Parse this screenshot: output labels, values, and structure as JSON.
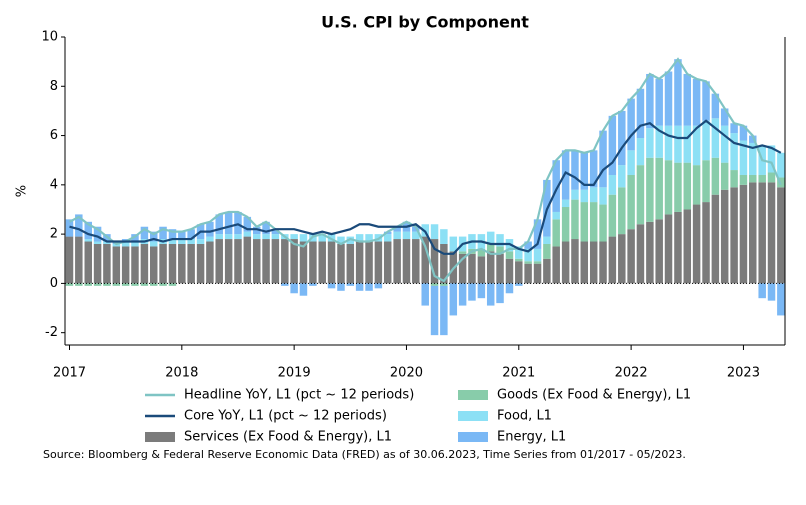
{
  "chart_data": {
    "type": "bar",
    "title": "U.S. CPI by Component",
    "y_label": "%",
    "source": "Source: Bloomberg & Federal Reserve Economic Data (FRED) as of 30.06.2023, Time Series from 01/2017 - 05/2023.",
    "xlim": [
      2016.96,
      2023.37
    ],
    "xticks": [
      2017,
      2018,
      2019,
      2020,
      2021,
      2022,
      2023
    ],
    "ylim": [
      -2.5,
      10
    ],
    "yticks": [
      -2,
      0,
      2,
      4,
      6,
      8,
      10
    ],
    "x": [
      2017,
      2017.083,
      2017.167,
      2017.25,
      2017.333,
      2017.417,
      2017.5,
      2017.583,
      2017.667,
      2017.75,
      2017.833,
      2017.917,
      2018,
      2018.083,
      2018.167,
      2018.25,
      2018.333,
      2018.417,
      2018.5,
      2018.583,
      2018.667,
      2018.75,
      2018.833,
      2018.917,
      2019,
      2019.083,
      2019.167,
      2019.25,
      2019.333,
      2019.417,
      2019.5,
      2019.583,
      2019.667,
      2019.75,
      2019.833,
      2019.917,
      2020,
      2020.083,
      2020.167,
      2020.25,
      2020.333,
      2020.417,
      2020.5,
      2020.583,
      2020.667,
      2020.75,
      2020.833,
      2020.917,
      2021,
      2021.083,
      2021.167,
      2021.25,
      2021.333,
      2021.417,
      2021.5,
      2021.583,
      2021.667,
      2021.75,
      2021.833,
      2021.917,
      2022,
      2022.083,
      2022.167,
      2022.25,
      2022.333,
      2022.417,
      2022.5,
      2022.583,
      2022.667,
      2022.75,
      2022.833,
      2022.917,
      2023,
      2023.083,
      2023.167,
      2023.25,
      2023.333
    ],
    "series": [
      {
        "name": "Headline YoY, L1 (pct ~ 12 periods)",
        "type": "line",
        "color": "#7fc4c4",
        "values": [
          2.5,
          2.7,
          2.4,
          2.2,
          1.9,
          1.6,
          1.7,
          1.9,
          2.2,
          2.0,
          2.2,
          2.1,
          2.1,
          2.2,
          2.4,
          2.5,
          2.8,
          2.9,
          2.9,
          2.7,
          2.3,
          2.5,
          2.2,
          1.9,
          1.6,
          1.5,
          1.9,
          2.0,
          1.8,
          1.6,
          1.8,
          1.7,
          1.7,
          1.8,
          2.1,
          2.3,
          2.5,
          2.3,
          1.5,
          0.3,
          0.1,
          0.6,
          1.0,
          1.3,
          1.4,
          1.2,
          1.2,
          1.4,
          1.4,
          1.7,
          2.6,
          4.2,
          5.0,
          5.4,
          5.4,
          5.3,
          5.4,
          6.2,
          6.8,
          7.0,
          7.5,
          7.9,
          8.5,
          8.3,
          8.6,
          9.1,
          8.5,
          8.3,
          8.2,
          7.7,
          7.1,
          6.5,
          6.4,
          6.0,
          5.0,
          4.9,
          4.0
        ]
      },
      {
        "name": "Core YoY, L1 (pct ~ 12 periods)",
        "type": "line",
        "color": "#1a4a7a",
        "values": [
          2.3,
          2.2,
          2.0,
          1.9,
          1.7,
          1.7,
          1.7,
          1.7,
          1.7,
          1.8,
          1.7,
          1.8,
          1.8,
          1.8,
          2.1,
          2.1,
          2.2,
          2.3,
          2.4,
          2.2,
          2.2,
          2.1,
          2.2,
          2.2,
          2.2,
          2.1,
          2.0,
          2.1,
          2.0,
          2.1,
          2.2,
          2.4,
          2.4,
          2.3,
          2.3,
          2.3,
          2.3,
          2.4,
          2.1,
          1.4,
          1.2,
          1.2,
          1.6,
          1.7,
          1.7,
          1.6,
          1.6,
          1.6,
          1.4,
          1.3,
          1.6,
          3.0,
          3.8,
          4.5,
          4.3,
          4.0,
          4.0,
          4.6,
          4.9,
          5.5,
          6.0,
          6.4,
          6.5,
          6.2,
          6.0,
          5.9,
          5.9,
          6.3,
          6.6,
          6.3,
          6.0,
          5.7,
          5.6,
          5.5,
          5.6,
          5.5,
          5.3
        ]
      },
      {
        "name": "Services (Ex Food & Energy), L1",
        "type": "bar",
        "color": "#7b7b7b",
        "values": [
          1.9,
          1.9,
          1.7,
          1.6,
          1.6,
          1.5,
          1.5,
          1.5,
          1.6,
          1.5,
          1.6,
          1.6,
          1.6,
          1.6,
          1.6,
          1.7,
          1.8,
          1.8,
          1.8,
          1.9,
          1.8,
          1.8,
          1.8,
          1.8,
          1.8,
          1.7,
          1.7,
          1.7,
          1.7,
          1.6,
          1.6,
          1.7,
          1.7,
          1.7,
          1.7,
          1.8,
          1.8,
          1.8,
          1.9,
          1.8,
          1.6,
          1.3,
          1.2,
          1.2,
          1.1,
          1.3,
          1.2,
          1.0,
          0.9,
          0.8,
          0.8,
          1.0,
          1.5,
          1.7,
          1.8,
          1.7,
          1.7,
          1.7,
          1.9,
          2.0,
          2.2,
          2.4,
          2.5,
          2.6,
          2.8,
          2.9,
          3.0,
          3.2,
          3.3,
          3.6,
          3.8,
          3.9,
          4.0,
          4.1,
          4.1,
          4.1,
          3.9
        ]
      },
      {
        "name": "Goods (Ex Food & Energy), L1",
        "type": "bar",
        "color": "#88ccaa",
        "values": [
          -0.1,
          -0.1,
          -0.1,
          -0.1,
          -0.1,
          -0.1,
          -0.1,
          -0.1,
          -0.1,
          -0.1,
          -0.1,
          -0.1,
          0,
          0,
          0,
          0,
          0,
          0,
          0,
          0,
          0,
          0,
          0,
          0,
          0,
          0,
          0,
          0,
          0,
          0,
          0,
          0,
          0,
          0,
          0,
          0,
          0,
          0,
          0,
          -0.1,
          -0.1,
          0,
          0.1,
          0.2,
          0.3,
          0.3,
          0.3,
          0.3,
          0.1,
          0.1,
          0.1,
          0.6,
          1.1,
          1.4,
          1.6,
          1.6,
          1.6,
          1.5,
          1.7,
          1.9,
          2.2,
          2.4,
          2.6,
          2.5,
          2.2,
          2.0,
          1.9,
          1.6,
          1.7,
          1.5,
          1.1,
          0.7,
          0.4,
          0.3,
          0.3,
          0.4,
          0.4
        ]
      },
      {
        "name": "Food, L1",
        "type": "bar",
        "color": "#8ce0f5",
        "values": [
          0,
          0,
          0.1,
          0.1,
          0.1,
          0.1,
          0.2,
          0.2,
          0.2,
          0.2,
          0.2,
          0.2,
          0.2,
          0.2,
          0.2,
          0.2,
          0.2,
          0.2,
          0.2,
          0.2,
          0.2,
          0.2,
          0.2,
          0.2,
          0.2,
          0.3,
          0.3,
          0.3,
          0.3,
          0.3,
          0.3,
          0.3,
          0.3,
          0.3,
          0.3,
          0.3,
          0.3,
          0.3,
          0.5,
          0.6,
          0.6,
          0.6,
          0.6,
          0.6,
          0.6,
          0.5,
          0.5,
          0.5,
          0.5,
          0.5,
          0.5,
          0.3,
          0.3,
          0.3,
          0.4,
          0.5,
          0.6,
          0.7,
          0.8,
          0.9,
          1.0,
          1.1,
          1.2,
          1.3,
          1.4,
          1.5,
          1.5,
          1.6,
          1.6,
          1.6,
          1.5,
          1.5,
          1.4,
          1.3,
          1.2,
          1.1,
          1.0
        ]
      },
      {
        "name": "Energy, L1",
        "type": "bar",
        "color": "#7ab8f5",
        "values": [
          0.7,
          0.9,
          0.7,
          0.6,
          0.3,
          0.1,
          0.1,
          0.3,
          0.5,
          0.4,
          0.5,
          0.4,
          0.3,
          0.4,
          0.6,
          0.6,
          0.8,
          0.9,
          0.9,
          0.6,
          0.3,
          0.5,
          0.2,
          -0.1,
          -0.4,
          -0.5,
          -0.1,
          0,
          -0.2,
          -0.3,
          -0.1,
          -0.3,
          -0.3,
          -0.2,
          0.1,
          0.2,
          0.4,
          0.2,
          -0.9,
          -2.0,
          -2.0,
          -1.3,
          -0.9,
          -0.7,
          -0.6,
          -0.9,
          -0.8,
          -0.4,
          -0.1,
          0.3,
          1.2,
          2.3,
          2.1,
          2.0,
          1.6,
          1.5,
          1.5,
          2.3,
          2.4,
          2.2,
          2.1,
          2.0,
          2.2,
          1.9,
          2.2,
          2.7,
          2.1,
          1.9,
          1.6,
          1.0,
          0.7,
          0.4,
          0.6,
          0.3,
          -0.6,
          -0.7,
          -1.3
        ]
      }
    ]
  }
}
